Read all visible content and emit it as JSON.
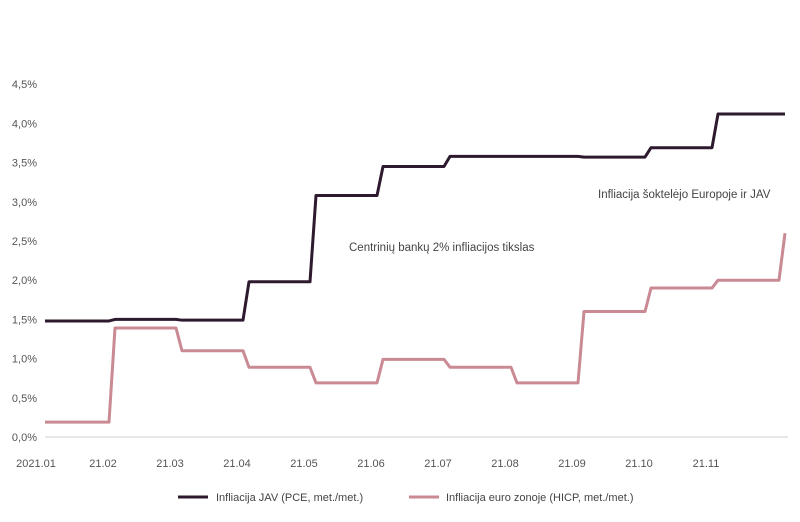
{
  "chart_data": {
    "type": "line",
    "x": [
      "2021.01",
      "21.02",
      "21.03",
      "21.04",
      "21.05",
      "21.06",
      "21.07",
      "21.08",
      "21.09",
      "21.10",
      "21.11",
      "21.12"
    ],
    "x_tick_labels": [
      "2021.01",
      "21.02",
      "21.03",
      "21.04",
      "21.05",
      "21.06",
      "21.07",
      "21.08",
      "21.09",
      "21.10",
      "21.11"
    ],
    "y_ticks": [
      "0,0%",
      "0,5%",
      "1,0%",
      "1,5%",
      "2,0%",
      "2,5%",
      "3,0%",
      "3,5%",
      "4,0%",
      "4,5%"
    ],
    "ylim": [
      0,
      4.5
    ],
    "grid": false,
    "legend_position": "bottom",
    "series": [
      {
        "name": "Infliacija JAV (PCE, met./met.)",
        "color": "#2e1a2e",
        "values": [
          1.48,
          1.5,
          1.49,
          1.98,
          3.08,
          3.45,
          3.58,
          3.58,
          3.57,
          3.69,
          4.12,
          4.12
        ]
      },
      {
        "name": "Infliacija euro zonoje (HICP, met./met.)",
        "color": "#c98a94",
        "values": [
          0.19,
          1.39,
          1.1,
          0.89,
          0.69,
          0.99,
          0.89,
          0.69,
          1.6,
          1.9,
          2.0,
          2.6
        ]
      }
    ],
    "annotations": [
      "Centrinių bankų 2% infliacijos tikslas",
      "Infliacija šoktelėjo Europoje ir JAV"
    ]
  }
}
